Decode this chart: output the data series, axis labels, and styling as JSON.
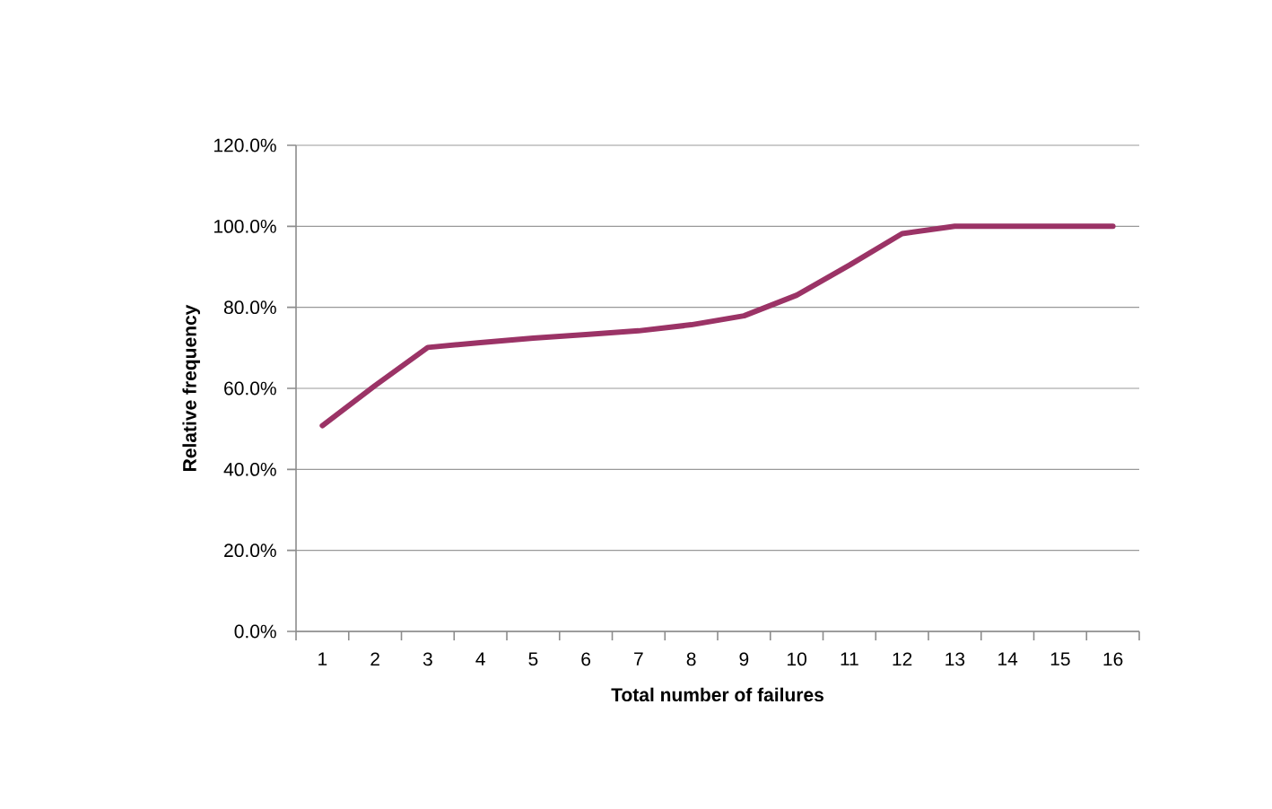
{
  "chart_data": {
    "type": "line",
    "xlabel": "Total number of failures",
    "ylabel": "Relative frequency",
    "categories": [
      "1",
      "2",
      "3",
      "4",
      "5",
      "6",
      "7",
      "8",
      "9",
      "10",
      "11",
      "12",
      "13",
      "14",
      "15",
      "16"
    ],
    "series": [
      {
        "color": "#9b3366",
        "values": [
          50.8,
          60.7,
          70.1,
          71.3,
          72.4,
          73.3,
          74.2,
          75.7,
          77.9,
          83.0,
          90.4,
          98.2,
          100,
          100,
          100,
          100
        ]
      }
    ],
    "ylim": [
      0,
      120
    ],
    "yticks": [
      {
        "value": 0,
        "label": "0.0%"
      },
      {
        "value": 20,
        "label": "20.0%"
      },
      {
        "value": 40,
        "label": "40.0%"
      },
      {
        "value": 60,
        "label": "60.0%"
      },
      {
        "value": 80,
        "label": "80.0%"
      },
      {
        "value": 100,
        "label": "100.0%"
      },
      {
        "value": 120,
        "label": "120.0%"
      }
    ],
    "grid": "y",
    "marker": "none",
    "line_style": "solid"
  }
}
